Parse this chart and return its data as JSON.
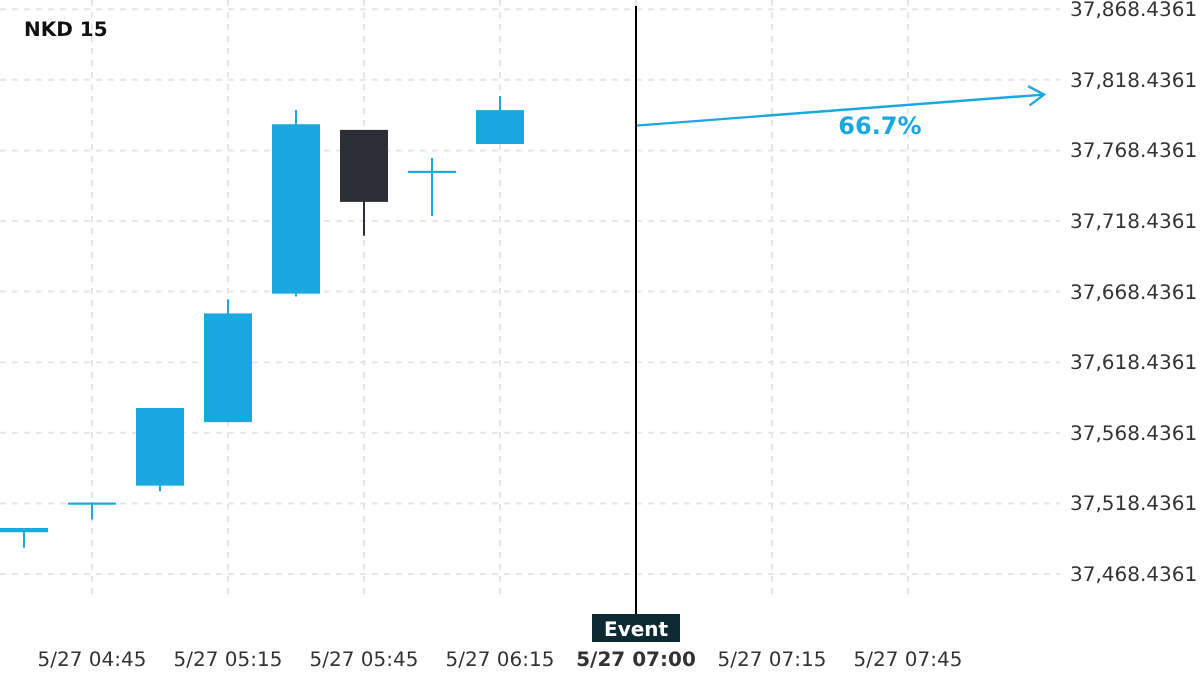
{
  "chart_data": {
    "type": "candlestick",
    "title": "NKD 15",
    "categories": [
      null,
      "5/27 04:45",
      null,
      "5/27 05:15",
      null,
      "5/27 05:45",
      null,
      "5/27 06:15",
      null,
      "5/27 07:00",
      null,
      "5/27 07:15",
      null,
      "5/27 07:45",
      null,
      null
    ],
    "ohlc": [
      [
        37498,
        37501,
        37487,
        37501
      ],
      [
        37517.5,
        37519,
        37507,
        37519
      ],
      [
        37531,
        37586,
        37527,
        37586
      ],
      [
        37576,
        37663,
        37576,
        37653
      ],
      [
        37667,
        37797,
        37665,
        37787
      ],
      [
        37783,
        37783,
        37708,
        37732
      ],
      [
        37752.5,
        37763,
        37722,
        37754
      ],
      [
        37773,
        37807,
        37773,
        37797
      ],
      null,
      null,
      null,
      null,
      null,
      null,
      null,
      null
    ],
    "colors": [
      "#1aa8e0",
      "#1aa8e0",
      "#1aa8e0",
      "#1aa8e0",
      "#1aa8e0",
      "#2d2d37",
      "#1aa8e0",
      "#1aa8e0",
      null,
      null,
      null,
      null,
      null,
      null,
      null,
      null
    ],
    "series": [
      {
        "type": "line",
        "color": "#1aa8e0",
        "values": [
          null,
          null,
          null,
          null,
          null,
          null,
          null,
          null,
          null,
          37786,
          null,
          null,
          null,
          null,
          null,
          37808
        ]
      }
    ],
    "annotations": [
      "66.7%"
    ],
    "ref_lines": [
      {
        "axis": "x",
        "value": "5/27 07:00",
        "label": "Event",
        "color": "#000000"
      }
    ],
    "ylim": [
      37450,
      37875
    ],
    "yticks": [
      {
        "value": 37468.4361,
        "label": "37,468.4361"
      },
      {
        "value": 37518.4361,
        "label": "37,518.4361"
      },
      {
        "value": 37568.4361,
        "label": "37,568.4361"
      },
      {
        "value": 37618.4361,
        "label": "37,618.4361"
      },
      {
        "value": 37668.4361,
        "label": "37,668.4361"
      },
      {
        "value": 37718.4361,
        "label": "37,718.4361"
      },
      {
        "value": 37768.4361,
        "label": "37,768.4361"
      },
      {
        "value": 37818.4361,
        "label": "37,818.4361"
      },
      {
        "value": 37868.4361,
        "label": "37,868.4361"
      }
    ],
    "grid": true
  }
}
